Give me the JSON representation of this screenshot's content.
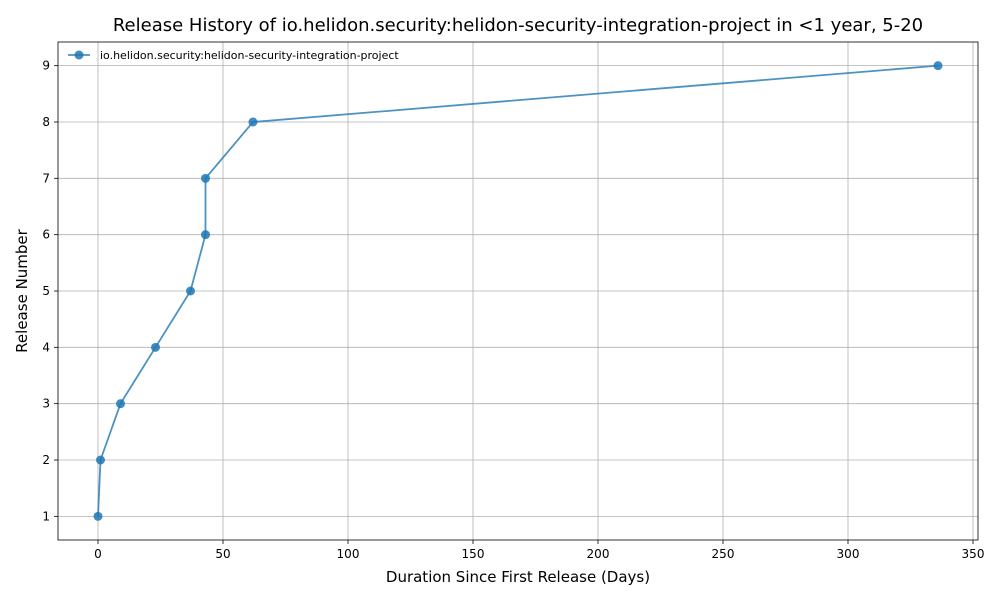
{
  "chart_data": {
    "type": "line",
    "title": "Release History of io.helidon.security:helidon-security-integration-project in <1 year, 5-20",
    "xlabel": "Duration Since First Release (Days)",
    "ylabel": "Release Number",
    "xlim": [
      -16,
      352
    ],
    "ylim": [
      0.58,
      9.42
    ],
    "xticks": [
      0,
      50,
      100,
      150,
      200,
      250,
      300,
      350
    ],
    "yticks": [
      1,
      2,
      3,
      4,
      5,
      6,
      7,
      8,
      9
    ],
    "grid": true,
    "legend_position": "upper-left",
    "series": [
      {
        "name": "io.helidon.security:helidon-security-integration-project",
        "color": "#1f77b4",
        "marker": "circle",
        "x": [
          0,
          1,
          9,
          23,
          37,
          43,
          43,
          62,
          336
        ],
        "y": [
          1,
          2,
          3,
          4,
          5,
          6,
          7,
          8,
          9
        ]
      }
    ]
  }
}
